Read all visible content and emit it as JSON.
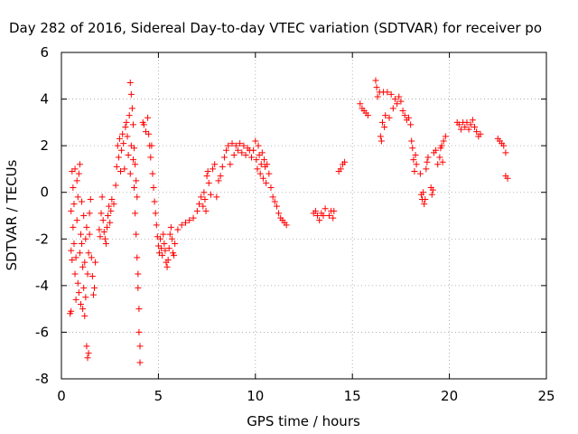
{
  "chart_data": {
    "type": "scatter",
    "title": "Day 282 of 2016, Sidereal Day-to-day VTEC variation (SDTVAR) for receiver po",
    "xlabel": "GPS time / hours",
    "ylabel": "SDTVAR / TECUs",
    "xlim": [
      0,
      25
    ],
    "ylim": [
      -8,
      6
    ],
    "xticks": [
      "0",
      "5",
      "10",
      "15",
      "20",
      "25"
    ],
    "yticks": [
      "-8",
      "-6",
      "-4",
      "-2",
      "0",
      "2",
      "4",
      "6"
    ],
    "grid": true,
    "marker": "plus",
    "color": "#ff0000",
    "series": [
      {
        "points": [
          [
            0.45,
            -5.2
          ],
          [
            0.5,
            -5.1
          ],
          [
            0.5,
            -2.5
          ],
          [
            0.5,
            -0.8
          ],
          [
            0.55,
            -2.9
          ],
          [
            0.55,
            0.9
          ],
          [
            0.6,
            -1.5
          ],
          [
            0.6,
            0.2
          ],
          [
            0.65,
            -2.2
          ],
          [
            0.65,
            -0.5
          ],
          [
            0.7,
            1.0
          ],
          [
            0.7,
            -3.5
          ],
          [
            0.75,
            -4.6
          ],
          [
            0.75,
            -2.8
          ],
          [
            0.8,
            0.5
          ],
          [
            0.8,
            -1.2
          ],
          [
            0.85,
            -3.9
          ],
          [
            0.85,
            -0.2
          ],
          [
            0.9,
            -4.3
          ],
          [
            0.9,
            0.8
          ],
          [
            0.95,
            -2.6
          ],
          [
            0.95,
            1.2
          ],
          [
            1.0,
            -4.8
          ],
          [
            1.0,
            -1.8
          ],
          [
            1.05,
            -2.2
          ],
          [
            1.05,
            -0.4
          ],
          [
            1.1,
            -5.0
          ],
          [
            1.1,
            -3.2
          ],
          [
            1.15,
            -1.0
          ],
          [
            1.15,
            -4.1
          ],
          [
            1.2,
            -3.0
          ],
          [
            1.2,
            -5.3
          ],
          [
            1.25,
            -2.0
          ],
          [
            1.25,
            -4.5
          ],
          [
            1.3,
            -6.6
          ],
          [
            1.3,
            -1.5
          ],
          [
            1.35,
            -7.1
          ],
          [
            1.35,
            -3.5
          ],
          [
            1.4,
            -2.6
          ],
          [
            1.4,
            -6.9
          ],
          [
            1.45,
            -1.8
          ],
          [
            1.45,
            -0.9
          ],
          [
            1.5,
            -0.3
          ],
          [
            1.55,
            -2.8
          ],
          [
            1.6,
            -3.6
          ],
          [
            1.65,
            -4.4
          ],
          [
            1.7,
            -4.1
          ],
          [
            1.75,
            -3.0
          ],
          [
            1.95,
            -1.6
          ],
          [
            2.0,
            -1.9
          ],
          [
            2.05,
            -0.9
          ],
          [
            2.1,
            -0.2
          ],
          [
            2.15,
            -1.2
          ],
          [
            2.2,
            -1.7
          ],
          [
            2.25,
            -2.0
          ],
          [
            2.3,
            -2.2
          ],
          [
            2.35,
            -1.5
          ],
          [
            2.4,
            -1.0
          ],
          [
            2.45,
            -0.6
          ],
          [
            2.5,
            -1.3
          ],
          [
            2.55,
            -0.8
          ],
          [
            2.6,
            -0.3
          ],
          [
            2.7,
            -0.5
          ],
          [
            2.8,
            0.3
          ],
          [
            2.85,
            1.1
          ],
          [
            2.9,
            2.0
          ],
          [
            2.95,
            1.5
          ],
          [
            3.0,
            2.3
          ],
          [
            3.05,
            0.9
          ],
          [
            3.1,
            1.8
          ],
          [
            3.15,
            2.5
          ],
          [
            3.2,
            2.1
          ],
          [
            3.25,
            1.0
          ],
          [
            3.3,
            2.8
          ],
          [
            3.35,
            3.0
          ],
          [
            3.4,
            2.4
          ],
          [
            3.45,
            1.6
          ],
          [
            3.5,
            3.3
          ],
          [
            3.55,
            4.7
          ],
          [
            3.55,
            0.8
          ],
          [
            3.6,
            4.2
          ],
          [
            3.6,
            2.0
          ],
          [
            3.65,
            3.6
          ],
          [
            3.7,
            1.4
          ],
          [
            3.7,
            2.9
          ],
          [
            3.75,
            0.2
          ],
          [
            3.75,
            1.9
          ],
          [
            3.8,
            -0.9
          ],
          [
            3.8,
            1.2
          ],
          [
            3.85,
            -1.8
          ],
          [
            3.85,
            0.5
          ],
          [
            3.9,
            -2.8
          ],
          [
            3.9,
            -0.2
          ],
          [
            3.95,
            -3.5
          ],
          [
            3.95,
            -4.1
          ],
          [
            4.0,
            -5.0
          ],
          [
            4.0,
            -6.0
          ],
          [
            4.05,
            -6.6
          ],
          [
            4.05,
            -7.3
          ],
          [
            4.2,
            3.0
          ],
          [
            4.25,
            2.9
          ],
          [
            4.35,
            2.6
          ],
          [
            4.45,
            3.2
          ],
          [
            4.5,
            2.5
          ],
          [
            4.55,
            2.0
          ],
          [
            4.6,
            1.5
          ],
          [
            4.65,
            2.0
          ],
          [
            4.7,
            0.8
          ],
          [
            4.75,
            0.2
          ],
          [
            4.8,
            -0.4
          ],
          [
            4.85,
            -0.9
          ],
          [
            4.9,
            -1.4
          ],
          [
            4.95,
            -1.9
          ],
          [
            5.0,
            -2.3
          ],
          [
            5.05,
            -2.6
          ],
          [
            5.1,
            -2.0
          ],
          [
            5.15,
            -2.4
          ],
          [
            5.2,
            -2.7
          ],
          [
            5.25,
            -1.8
          ],
          [
            5.3,
            -2.2
          ],
          [
            5.35,
            -2.5
          ],
          [
            5.4,
            -3.0
          ],
          [
            5.45,
            -3.2
          ],
          [
            5.5,
            -2.9
          ],
          [
            5.55,
            -2.4
          ],
          [
            5.6,
            -1.8
          ],
          [
            5.65,
            -1.5
          ],
          [
            5.7,
            -2.0
          ],
          [
            5.75,
            -2.6
          ],
          [
            5.8,
            -2.7
          ],
          [
            5.85,
            -2.2
          ],
          [
            6.0,
            -1.6
          ],
          [
            6.2,
            -1.4
          ],
          [
            6.4,
            -1.3
          ],
          [
            6.6,
            -1.2
          ],
          [
            6.8,
            -1.1
          ],
          [
            7.0,
            -0.8
          ],
          [
            7.1,
            -0.5
          ],
          [
            7.2,
            -0.2
          ],
          [
            7.3,
            -0.6
          ],
          [
            7.35,
            0.0
          ],
          [
            7.4,
            -0.3
          ],
          [
            7.45,
            -0.8
          ],
          [
            7.5,
            0.7
          ],
          [
            7.55,
            0.9
          ],
          [
            7.6,
            0.4
          ],
          [
            7.7,
            -0.1
          ],
          [
            7.8,
            1.0
          ],
          [
            7.9,
            1.2
          ],
          [
            8.0,
            -0.2
          ],
          [
            8.1,
            0.5
          ],
          [
            8.2,
            0.7
          ],
          [
            8.3,
            1.1
          ],
          [
            8.4,
            1.5
          ],
          [
            8.5,
            1.8
          ],
          [
            8.6,
            2.0
          ],
          [
            8.7,
            1.2
          ],
          [
            8.8,
            2.1
          ],
          [
            8.9,
            1.6
          ],
          [
            9.0,
            2.0
          ],
          [
            9.1,
            1.8
          ],
          [
            9.2,
            2.1
          ],
          [
            9.3,
            1.7
          ],
          [
            9.4,
            2.0
          ],
          [
            9.5,
            1.6
          ],
          [
            9.6,
            1.9
          ],
          [
            9.7,
            1.8
          ],
          [
            9.8,
            1.5
          ],
          [
            9.9,
            1.8
          ],
          [
            10.0,
            2.2
          ],
          [
            10.05,
            1.4
          ],
          [
            10.1,
            1.0
          ],
          [
            10.15,
            2.0
          ],
          [
            10.2,
            1.6
          ],
          [
            10.25,
            0.8
          ],
          [
            10.3,
            1.2
          ],
          [
            10.35,
            1.7
          ],
          [
            10.4,
            0.6
          ],
          [
            10.45,
            1.4
          ],
          [
            10.5,
            1.1
          ],
          [
            10.55,
            0.4
          ],
          [
            10.6,
            1.2
          ],
          [
            10.7,
            0.8
          ],
          [
            10.8,
            0.2
          ],
          [
            10.9,
            -0.2
          ],
          [
            11.0,
            -0.4
          ],
          [
            11.1,
            -0.6
          ],
          [
            11.2,
            -0.9
          ],
          [
            11.3,
            -1.1
          ],
          [
            11.4,
            -1.2
          ],
          [
            11.5,
            -1.3
          ],
          [
            11.6,
            -1.4
          ],
          [
            13.0,
            -0.9
          ],
          [
            13.1,
            -0.8
          ],
          [
            13.2,
            -1.0
          ],
          [
            13.3,
            -1.2
          ],
          [
            13.4,
            -0.9
          ],
          [
            13.5,
            -1.0
          ],
          [
            13.6,
            -0.7
          ],
          [
            13.8,
            -1.0
          ],
          [
            13.9,
            -0.8
          ],
          [
            14.0,
            -1.1
          ],
          [
            14.05,
            -0.8
          ],
          [
            14.3,
            0.9
          ],
          [
            14.4,
            1.0
          ],
          [
            14.5,
            1.2
          ],
          [
            14.6,
            1.3
          ],
          [
            15.4,
            3.8
          ],
          [
            15.5,
            3.6
          ],
          [
            15.6,
            3.5
          ],
          [
            15.7,
            3.4
          ],
          [
            15.8,
            3.3
          ],
          [
            16.2,
            4.8
          ],
          [
            16.25,
            4.5
          ],
          [
            16.3,
            4.1
          ],
          [
            16.4,
            4.3
          ],
          [
            16.45,
            2.4
          ],
          [
            16.5,
            2.2
          ],
          [
            16.55,
            3.0
          ],
          [
            16.6,
            4.3
          ],
          [
            16.65,
            2.8
          ],
          [
            16.7,
            3.3
          ],
          [
            16.8,
            4.3
          ],
          [
            16.9,
            3.2
          ],
          [
            17.0,
            4.2
          ],
          [
            17.1,
            3.6
          ],
          [
            17.2,
            4.0
          ],
          [
            17.3,
            3.8
          ],
          [
            17.4,
            4.1
          ],
          [
            17.5,
            3.9
          ],
          [
            17.6,
            3.5
          ],
          [
            17.7,
            3.3
          ],
          [
            17.8,
            3.1
          ],
          [
            17.9,
            3.2
          ],
          [
            18.0,
            2.9
          ],
          [
            18.05,
            2.2
          ],
          [
            18.1,
            1.9
          ],
          [
            18.15,
            1.4
          ],
          [
            18.2,
            0.9
          ],
          [
            18.25,
            1.6
          ],
          [
            18.3,
            1.2
          ],
          [
            18.5,
            0.8
          ],
          [
            18.55,
            -0.1
          ],
          [
            18.6,
            -0.3
          ],
          [
            18.65,
            0.0
          ],
          [
            18.7,
            -0.5
          ],
          [
            18.75,
            -0.3
          ],
          [
            18.8,
            1.0
          ],
          [
            18.85,
            1.3
          ],
          [
            18.9,
            1.5
          ],
          [
            19.05,
            0.2
          ],
          [
            19.1,
            -0.1
          ],
          [
            19.15,
            0.1
          ],
          [
            19.2,
            1.7
          ],
          [
            19.3,
            1.8
          ],
          [
            19.4,
            1.2
          ],
          [
            19.5,
            1.5
          ],
          [
            19.55,
            1.9
          ],
          [
            19.6,
            2.0
          ],
          [
            19.65,
            1.3
          ],
          [
            19.7,
            2.2
          ],
          [
            19.8,
            2.4
          ],
          [
            20.4,
            3.0
          ],
          [
            20.5,
            2.9
          ],
          [
            20.6,
            2.7
          ],
          [
            20.7,
            3.0
          ],
          [
            20.8,
            2.8
          ],
          [
            20.9,
            3.0
          ],
          [
            21.0,
            2.7
          ],
          [
            21.1,
            2.9
          ],
          [
            21.2,
            3.1
          ],
          [
            21.3,
            2.8
          ],
          [
            21.4,
            2.6
          ],
          [
            21.5,
            2.4
          ],
          [
            21.6,
            2.5
          ],
          [
            22.5,
            2.3
          ],
          [
            22.6,
            2.2
          ],
          [
            22.7,
            2.1
          ],
          [
            22.8,
            2.0
          ],
          [
            22.9,
            1.7
          ],
          [
            22.9,
            0.7
          ],
          [
            23.0,
            0.6
          ]
        ]
      }
    ]
  }
}
